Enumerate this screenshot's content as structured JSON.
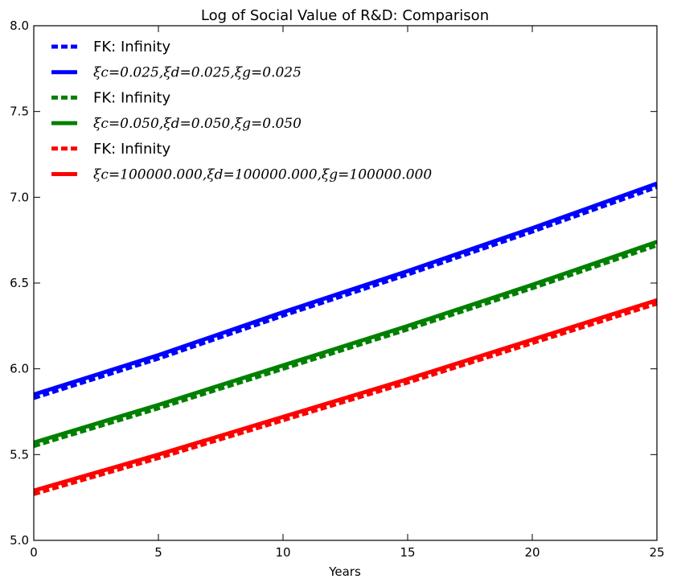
{
  "chart_data": {
    "type": "line",
    "title": "Log of Social Value of R&D: Comparison",
    "xlabel": "Years",
    "ylabel": "",
    "xlim": [
      0,
      25
    ],
    "ylim": [
      5.0,
      8.0
    ],
    "xticks": [
      "0",
      "5",
      "10",
      "15",
      "20",
      "25"
    ],
    "yticks": [
      "5.0",
      "5.5",
      "6.0",
      "6.5",
      "7.0",
      "7.5",
      "8.0"
    ],
    "grid": false,
    "legend_position": "top-left",
    "x": [
      0,
      5,
      10,
      15,
      20,
      25
    ],
    "series": [
      {
        "name": "FK: Infinity",
        "style": "dashed",
        "color": "#0000ff",
        "values": [
          5.83,
          6.06,
          6.31,
          6.55,
          6.8,
          7.06
        ]
      },
      {
        "name": "ξc=0.025,ξd=0.025,ξg=0.025",
        "style": "solid",
        "color": "#0000ff",
        "values": [
          5.85,
          6.08,
          6.33,
          6.57,
          6.82,
          7.08
        ]
      },
      {
        "name": "FK: Infinity",
        "style": "dashed",
        "color": "#008000",
        "values": [
          5.55,
          5.77,
          6.0,
          6.23,
          6.47,
          6.72
        ]
      },
      {
        "name": "ξc=0.050,ξd=0.050,ξg=0.050",
        "style": "solid",
        "color": "#008000",
        "values": [
          5.57,
          5.79,
          6.02,
          6.25,
          6.49,
          6.74
        ]
      },
      {
        "name": "FK: Infinity",
        "style": "dashed",
        "color": "#ff0000",
        "values": [
          5.27,
          5.48,
          5.7,
          5.92,
          6.15,
          6.38
        ]
      },
      {
        "name": "ξc=100000.000,ξd=100000.000,ξg=100000.000",
        "style": "solid",
        "color": "#ff0000",
        "values": [
          5.29,
          5.5,
          5.72,
          5.94,
          6.17,
          6.4
        ]
      }
    ]
  }
}
